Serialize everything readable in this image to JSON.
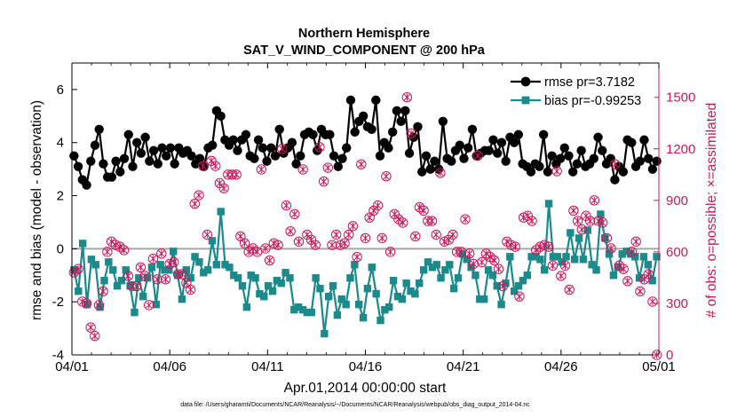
{
  "chart_data": {
    "type": "line",
    "title": "Northern Hemisphere",
    "subtitle": "SAT_V_WIND_COMPONENT @ 200 hPa",
    "xlabel": "Apr.01,2014 00:00:00 start",
    "ylabel": "rmse and bias (model - observation)",
    "ylabel_right": "# of obs: o=possible; ×=assimilated",
    "footnote": "data file: /Users/gharamti/Documents/NCAR/Reanalysis/~/Documents/NCAR/Reanalysis/webpub/obs_diag_output_2014-04.nc",
    "x_range": [
      0,
      30
    ],
    "ylim": [
      -4,
      7
    ],
    "ylim_right": [
      0,
      1700
    ],
    "x_tick_values": [
      0,
      5,
      10,
      15,
      20,
      25,
      30
    ],
    "x_tick_labels": [
      "04/01",
      "04/06",
      "04/11",
      "04/16",
      "04/21",
      "04/26",
      "05/01"
    ],
    "y_ticks": [
      -4,
      -2,
      0,
      2,
      4,
      6
    ],
    "y_tick_labels": [
      "-4",
      "-2",
      "0",
      "2",
      "4",
      "6"
    ],
    "y_ticks_right": [
      0,
      300,
      600,
      900,
      1200,
      1500
    ],
    "y_tick_labels_right": [
      "0",
      "300",
      "600",
      "900",
      "1200",
      "1500"
    ],
    "zero_line": 0,
    "legend_position": "top-right",
    "series": [
      {
        "name": "rmse pr=3.7182",
        "color": "#000000",
        "marker": "circle",
        "axis": "left",
        "values": [
          3.5,
          3.1,
          2.6,
          2.4,
          3.3,
          3.9,
          4.5,
          3.2,
          2.7,
          2.7,
          3.3,
          2.9,
          3.4,
          4.3,
          3.1,
          4.0,
          3.6,
          4.2,
          3.3,
          3.7,
          3.2,
          3.8,
          3.5,
          3.8,
          3.2,
          3.8,
          3.6,
          3.7,
          3.5,
          3.2,
          3.4,
          3.1,
          3.8,
          3.9,
          5.2,
          5.0,
          4.1,
          3.9,
          4.1,
          3.7,
          4.1,
          4.3,
          3.5,
          3.4,
          4.1,
          3.8,
          3.3,
          3.8,
          3.5,
          4.5,
          3.6,
          3.8,
          4.0,
          3.2,
          3.5,
          4.3,
          4.4,
          4.3,
          3.7,
          4.5,
          4.3,
          4.3,
          3.5,
          3.1,
          3.4,
          3.8,
          5.6,
          4.4,
          4.8,
          5.0,
          4.6,
          4.5,
          5.6,
          3.5,
          4.0,
          3.8,
          4.4,
          5.2,
          4.8,
          5.2,
          3.6,
          4.2,
          4.6,
          2.9,
          3.5,
          3.0,
          3.3,
          3.0,
          4.8,
          3.4,
          3.3,
          3.7,
          3.9,
          3.4,
          3.8,
          4.5,
          3.5,
          3.6,
          3.7,
          3.7,
          4.1,
          3.6,
          4.0,
          3.3,
          4.2,
          4.0,
          4.3,
          3.2,
          3.1,
          2.9,
          3.2,
          3.1,
          4.3,
          2.9,
          3.5,
          3.2,
          3.4,
          3.8,
          3.5,
          2.9,
          3.2,
          3.7,
          3.1,
          3.2,
          3.4,
          4.2,
          3.7,
          3.2,
          3.4,
          2.6,
          3.1,
          2.9,
          4.1,
          4.0,
          3.1,
          3.3,
          4.1,
          3.4,
          3.0,
          3.3
        ]
      },
      {
        "name": "bias pr=-0.99253",
        "color": "#1a8a8a",
        "marker": "square",
        "axis": "left",
        "values": [
          -0.8,
          -1.6,
          0.2,
          -2.1,
          -0.4,
          -0.6,
          -2.2,
          -1.2,
          -0.5,
          -0.8,
          -1.4,
          -1.2,
          -0.8,
          -1.4,
          -2.4,
          -1.1,
          -1.8,
          -1.1,
          -0.7,
          -2.1,
          -0.6,
          -0.8,
          -0.8,
          -0.1,
          -1.0,
          -1.9,
          -0.8,
          -1.1,
          -0.3,
          -0.5,
          -0.9,
          -0.8,
          0.3,
          -0.6,
          1.4,
          -0.6,
          -0.7,
          -1.0,
          -1.1,
          -1.4,
          -2.2,
          -1.0,
          -1.1,
          -1.7,
          -1.8,
          -1.4,
          -1.6,
          -1.2,
          -1.3,
          -0.9,
          -1.1,
          -2.3,
          -2.2,
          -2.3,
          -2.4,
          -2.4,
          -1.1,
          -1.5,
          -3.2,
          -1.8,
          -1.4,
          -2.5,
          -1.9,
          -2.1,
          -1.1,
          -0.6,
          -2.1,
          -2.6,
          -1.5,
          -0.7,
          -1.7,
          -2.7,
          -2.3,
          -2.2,
          -1.2,
          -1.8,
          -1.9,
          -1.3,
          -1.6,
          -1.7,
          -1.3,
          -0.8,
          -0.5,
          -0.7,
          -0.6,
          -1.1,
          -0.8,
          -0.6,
          -1.5,
          -1.1,
          -0.2,
          -0.4,
          -0.7,
          -1.0,
          -1.9,
          -1.9,
          -0.8,
          -1.0,
          -1.4,
          -2.1,
          -1.3,
          -0.3,
          -1.6,
          -1.4,
          -1.2,
          -1.0,
          -0.3,
          -0.3,
          -0.4,
          -0.8,
          1.7,
          -0.3,
          -0.3,
          -0.5,
          -0.3,
          0.6,
          -0.4,
          0.4,
          -0.4,
          0.7,
          -0.6,
          -0.8,
          1.3,
          0.4,
          -0.2,
          -1.0,
          -0.7,
          -0.2,
          -0.1,
          -0.2,
          -0.3,
          -1.1,
          -0.3,
          -0.6,
          -1.2,
          -0.3
        ]
      },
      {
        "name": "# of obs possible",
        "color": "#c8185a",
        "marker": "circle-open",
        "axis": "right",
        "values": [
          480,
          500,
          310,
          300,
          160,
          110,
          290,
          370,
          600,
          660,
          640,
          630,
          610,
          460,
          400,
          400,
          510,
          460,
          290,
          560,
          440,
          590,
          440,
          530,
          540,
          470,
          470,
          420,
          380,
          880,
          930,
          1100,
          700,
          1130,
          1100,
          1000,
          970,
          1050,
          1050,
          1050,
          690,
          650,
          600,
          620,
          600,
          1080,
          620,
          550,
          650,
          640,
          1200,
          870,
          720,
          820,
          660,
          1080,
          700,
          670,
          640,
          1210,
          1010,
          1090,
          640,
          700,
          640,
          650,
          700,
          750,
          570,
          1110,
          680,
          800,
          840,
          870,
          680,
          1040,
          600,
          820,
          790,
          770,
          1500,
          1290,
          690,
          860,
          840,
          780,
          780,
          700,
          1060,
          660,
          670,
          700,
          600,
          600,
          790,
          590,
          530,
          1160,
          540,
          590,
          570,
          550,
          500,
          400,
          660,
          640,
          630,
          340,
          800,
          810,
          780,
          610,
          630,
          640,
          630,
          520,
          1070,
          460,
          520,
          380,
          840,
          780,
          730,
          810,
          780,
          900,
          780,
          770,
          680,
          620,
          1110,
          520,
          500,
          430,
          600,
          660,
          370,
          440,
          470,
          310,
          0
        ]
      },
      {
        "name": "# of obs assimilated",
        "color": "#c8185a",
        "marker": "cross",
        "axis": "right",
        "values": [
          480,
          500,
          310,
          300,
          160,
          110,
          290,
          370,
          600,
          660,
          640,
          630,
          610,
          460,
          400,
          400,
          510,
          460,
          290,
          560,
          440,
          590,
          440,
          530,
          540,
          470,
          470,
          420,
          380,
          880,
          930,
          1100,
          700,
          1130,
          1100,
          1000,
          970,
          1050,
          1050,
          1050,
          690,
          650,
          600,
          620,
          600,
          1080,
          620,
          550,
          650,
          640,
          1200,
          870,
          720,
          820,
          660,
          1080,
          700,
          670,
          640,
          1210,
          1010,
          1090,
          640,
          700,
          640,
          650,
          700,
          750,
          570,
          1110,
          680,
          800,
          840,
          870,
          680,
          1040,
          600,
          820,
          790,
          770,
          1500,
          1290,
          690,
          860,
          840,
          780,
          780,
          700,
          1060,
          660,
          670,
          700,
          600,
          600,
          790,
          590,
          530,
          1160,
          540,
          590,
          570,
          550,
          500,
          400,
          660,
          640,
          630,
          340,
          800,
          810,
          780,
          610,
          630,
          640,
          630,
          520,
          1070,
          460,
          520,
          380,
          840,
          780,
          730,
          810,
          780,
          900,
          780,
          770,
          680,
          620,
          1110,
          520,
          500,
          430,
          600,
          660,
          370,
          440,
          470,
          310,
          0
        ]
      }
    ]
  }
}
